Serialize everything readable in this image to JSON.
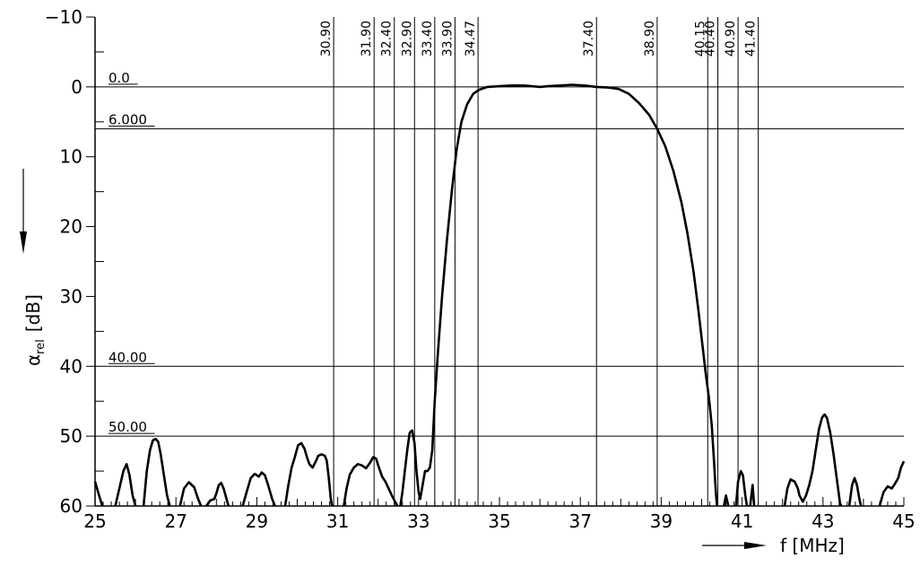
{
  "chart_data": {
    "type": "line",
    "x_axis": {
      "min": 25,
      "max": 45,
      "tick_labels": [
        "25",
        "27",
        "29",
        "31",
        "33",
        "35",
        "37",
        "39",
        "41",
        "43",
        "45"
      ],
      "label_symbol": "f",
      "label_unit": "[MHz]"
    },
    "y_axis": {
      "min": -10,
      "max": 60,
      "inverted": true,
      "tick_labels": [
        "−10",
        "0",
        "10",
        "20",
        "30",
        "40",
        "50",
        "60"
      ],
      "label_symbol": "α",
      "label_subscript": "rel",
      "label_unit": "[dB]"
    },
    "frequency_markers": [
      {
        "x": 30.9,
        "label": "30.90"
      },
      {
        "x": 31.9,
        "label": "31.90"
      },
      {
        "x": 32.4,
        "label": "32.40"
      },
      {
        "x": 32.9,
        "label": "32.90"
      },
      {
        "x": 33.4,
        "label": "33.40"
      },
      {
        "x": 33.9,
        "label": "33.90"
      },
      {
        "x": 34.47,
        "label": "34.47"
      },
      {
        "x": 37.4,
        "label": "37.40"
      },
      {
        "x": 38.9,
        "label": "38.90"
      },
      {
        "x": 40.15,
        "label": "40.15"
      },
      {
        "x": 40.4,
        "label": "40.40"
      },
      {
        "x": 40.9,
        "label": "40.90"
      },
      {
        "x": 41.4,
        "label": "41.40"
      }
    ],
    "reference_lines": [
      {
        "y": 0,
        "label": "0.0"
      },
      {
        "y": 6,
        "label": "6.000"
      },
      {
        "y": 40,
        "label": "40.00"
      },
      {
        "y": 50,
        "label": "50.00"
      }
    ],
    "series": [
      {
        "segments": [
          [
            [
              25.0,
              56.5
            ],
            [
              25.1,
              58.5
            ],
            [
              25.18,
              60
            ]
          ],
          [
            [
              25.5,
              60
            ],
            [
              25.6,
              57.5
            ],
            [
              25.7,
              55
            ],
            [
              25.78,
              54.0
            ],
            [
              25.85,
              55.5
            ],
            [
              25.93,
              58.5
            ],
            [
              26.0,
              60
            ]
          ],
          [
            [
              26.2,
              60
            ],
            [
              26.28,
              55
            ],
            [
              26.36,
              52
            ],
            [
              26.43,
              50.6
            ],
            [
              26.5,
              50.4
            ],
            [
              26.56,
              50.8
            ],
            [
              26.62,
              52.5
            ],
            [
              26.7,
              55.5
            ],
            [
              26.78,
              58.5
            ],
            [
              26.85,
              60
            ]
          ],
          [
            [
              27.1,
              60
            ],
            [
              27.2,
              57.5
            ],
            [
              27.32,
              56.6
            ],
            [
              27.45,
              57.3
            ],
            [
              27.55,
              59.0
            ],
            [
              27.62,
              60
            ]
          ],
          [
            [
              27.75,
              60
            ],
            [
              27.85,
              59.2
            ],
            [
              27.95,
              59.0
            ],
            [
              28.0,
              58.2
            ],
            [
              28.06,
              57.0
            ],
            [
              28.12,
              56.7
            ],
            [
              28.18,
              57.5
            ],
            [
              28.25,
              59.0
            ],
            [
              28.3,
              60
            ]
          ],
          [
            [
              28.65,
              60
            ],
            [
              28.75,
              58.0
            ],
            [
              28.85,
              56.0
            ],
            [
              28.95,
              55.4
            ],
            [
              29.05,
              55.8
            ],
            [
              29.12,
              55.2
            ],
            [
              29.2,
              55.6
            ],
            [
              29.28,
              57.0
            ],
            [
              29.38,
              59.0
            ],
            [
              29.45,
              60
            ]
          ],
          [
            [
              29.7,
              60
            ],
            [
              29.78,
              57.0
            ],
            [
              29.86,
              54.5
            ],
            [
              29.94,
              53.0
            ],
            [
              30.02,
              51.3
            ],
            [
              30.1,
              51.0
            ],
            [
              30.18,
              51.8
            ],
            [
              30.24,
              53.0
            ],
            [
              30.3,
              54.0
            ],
            [
              30.38,
              54.5
            ],
            [
              30.46,
              53.6
            ],
            [
              30.52,
              52.8
            ],
            [
              30.6,
              52.6
            ],
            [
              30.68,
              52.8
            ],
            [
              30.73,
              53.5
            ],
            [
              30.78,
              56.0
            ],
            [
              30.83,
              59.0
            ],
            [
              30.86,
              60
            ]
          ],
          [
            [
              31.15,
              60
            ],
            [
              31.22,
              57.5
            ],
            [
              31.3,
              55.5
            ],
            [
              31.4,
              54.5
            ],
            [
              31.5,
              54.0
            ],
            [
              31.6,
              54.2
            ],
            [
              31.7,
              54.6
            ],
            [
              31.8,
              53.8
            ],
            [
              31.88,
              53.0
            ],
            [
              31.95,
              53.2
            ],
            [
              32.02,
              54.5
            ],
            [
              32.1,
              55.8
            ],
            [
              32.18,
              56.5
            ],
            [
              32.26,
              57.5
            ],
            [
              32.34,
              58.5
            ],
            [
              32.42,
              59.4
            ],
            [
              32.48,
              60
            ]
          ],
          [
            [
              32.55,
              60
            ],
            [
              32.6,
              58.0
            ],
            [
              32.65,
              55.5
            ],
            [
              32.72,
              52.0
            ],
            [
              32.78,
              49.5
            ],
            [
              32.84,
              49.2
            ],
            [
              32.9,
              51.0
            ],
            [
              32.95,
              55.0
            ],
            [
              33.0,
              58.0
            ],
            [
              33.04,
              59.0
            ],
            [
              33.1,
              57.0
            ],
            [
              33.16,
              55.0
            ],
            [
              33.22,
              55.0
            ],
            [
              33.28,
              54.5
            ],
            [
              33.34,
              52.0
            ],
            [
              33.4,
              45.0
            ],
            [
              33.48,
              38.0
            ],
            [
              33.58,
              30.0
            ],
            [
              33.7,
              22.0
            ],
            [
              33.82,
              15.0
            ],
            [
              33.94,
              9.0
            ],
            [
              34.06,
              5.0
            ],
            [
              34.2,
              2.5
            ],
            [
              34.35,
              1.0
            ],
            [
              34.5,
              0.4
            ],
            [
              34.7,
              0.0
            ],
            [
              35.0,
              -0.1
            ],
            [
              35.3,
              -0.2
            ],
            [
              35.6,
              -0.2
            ],
            [
              35.8,
              -0.1
            ],
            [
              36.0,
              0.0
            ],
            [
              36.2,
              -0.1
            ],
            [
              36.5,
              -0.2
            ],
            [
              36.8,
              -0.3
            ],
            [
              37.1,
              -0.2
            ],
            [
              37.4,
              0.0
            ],
            [
              37.7,
              0.1
            ],
            [
              37.95,
              0.3
            ],
            [
              38.2,
              1.0
            ],
            [
              38.45,
              2.3
            ],
            [
              38.7,
              4.0
            ],
            [
              38.9,
              6.0
            ],
            [
              39.1,
              8.5
            ],
            [
              39.3,
              12.0
            ],
            [
              39.5,
              16.5
            ],
            [
              39.65,
              21.0
            ],
            [
              39.8,
              26.5
            ],
            [
              39.92,
              32.0
            ],
            [
              40.02,
              37.0
            ],
            [
              40.1,
              41.0
            ],
            [
              40.18,
              44.5
            ],
            [
              40.25,
              48.5
            ],
            [
              40.3,
              53.0
            ],
            [
              40.35,
              58.0
            ],
            [
              40.38,
              60
            ]
          ],
          [
            [
              40.55,
              60
            ],
            [
              40.6,
              58.5
            ],
            [
              40.66,
              60
            ]
          ],
          [
            [
              40.85,
              60
            ],
            [
              40.9,
              56.5
            ],
            [
              40.97,
              55.0
            ],
            [
              41.02,
              55.6
            ],
            [
              41.08,
              58.5
            ],
            [
              41.12,
              60
            ]
          ],
          [
            [
              41.2,
              60
            ],
            [
              41.26,
              57.0
            ],
            [
              41.3,
              60
            ]
          ],
          [
            [
              42.05,
              60
            ],
            [
              42.12,
              57.5
            ],
            [
              42.2,
              56.2
            ],
            [
              42.3,
              56.5
            ],
            [
              42.38,
              57.5
            ],
            [
              42.42,
              58.5
            ],
            [
              42.5,
              59.4
            ],
            [
              42.58,
              58.5
            ],
            [
              42.66,
              57.0
            ],
            [
              42.74,
              55.0
            ],
            [
              42.82,
              52.0
            ],
            [
              42.9,
              49.0
            ],
            [
              42.98,
              47.3
            ],
            [
              43.04,
              46.9
            ],
            [
              43.1,
              47.4
            ],
            [
              43.18,
              49.5
            ],
            [
              43.26,
              52.5
            ],
            [
              43.34,
              56.0
            ],
            [
              43.42,
              59.5
            ],
            [
              43.45,
              60
            ]
          ],
          [
            [
              43.65,
              60
            ],
            [
              43.72,
              57.0
            ],
            [
              43.78,
              56.0
            ],
            [
              43.84,
              57.0
            ],
            [
              43.9,
              59.0
            ],
            [
              43.94,
              60
            ]
          ],
          [
            [
              44.4,
              60
            ],
            [
              44.5,
              58.0
            ],
            [
              44.6,
              57.2
            ],
            [
              44.7,
              57.5
            ],
            [
              44.78,
              56.8
            ],
            [
              44.86,
              56.0
            ],
            [
              44.93,
              54.5
            ],
            [
              45.0,
              53.6
            ]
          ]
        ]
      }
    ]
  }
}
